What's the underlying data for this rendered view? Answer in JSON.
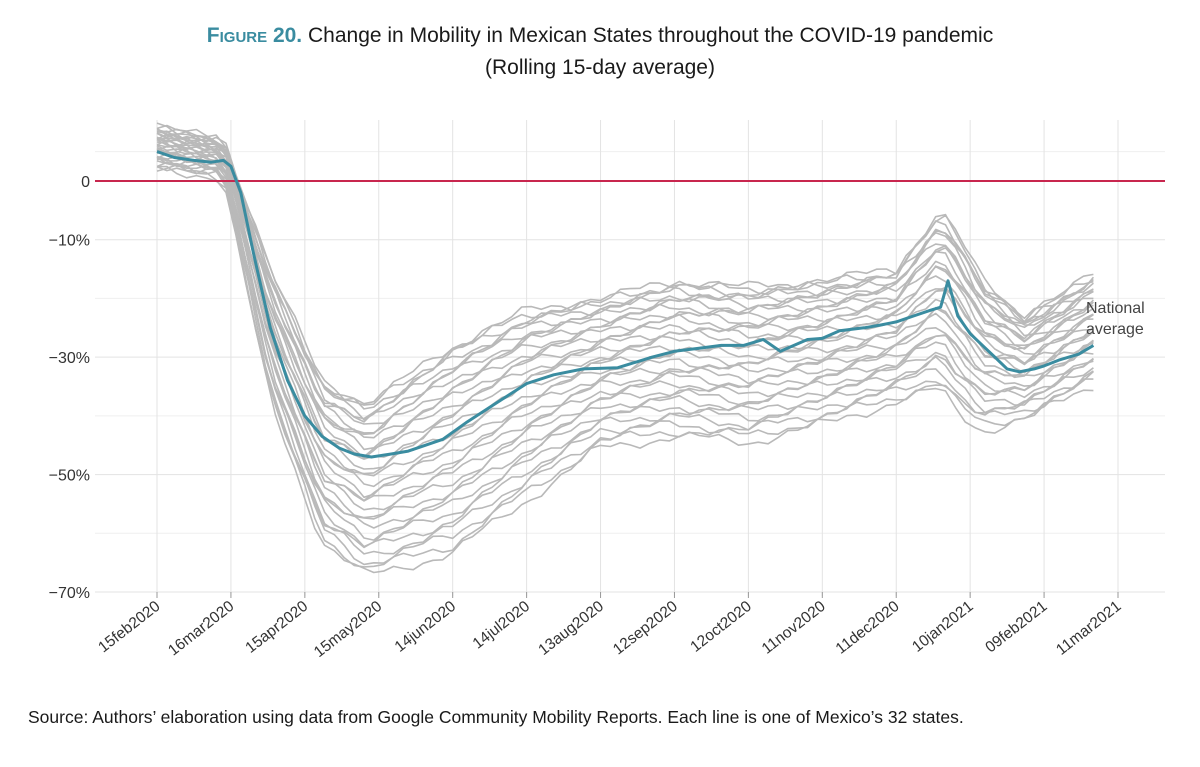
{
  "figure": {
    "label": "Figure 20.",
    "title": "Change in Mobility in Mexican States throughout the COVID-19 pandemic",
    "subtitle": "(Rolling 15-day average)"
  },
  "source": "Source: Authors’ elaboration using data from Google Community Mobility Reports. Each line is one of Mexico’s 32 states.",
  "colors": {
    "state_lines": "#b9b9b9",
    "national_average": "#3a8ca0",
    "zero_line": "#c8264e",
    "grid": "#e3e3e3"
  },
  "chart_data": {
    "type": "line",
    "title": "Change in Mobility in Mexican States throughout the COVID-19 pandemic",
    "subtitle": "(Rolling 15-day average)",
    "xlabel": "",
    "ylabel": "",
    "ylim": [
      -70,
      10
    ],
    "y_ticks": [
      0,
      -10,
      -30,
      -50,
      -70
    ],
    "y_tick_labels": [
      "0",
      "−10%",
      "−30%",
      "−50%",
      "−70%"
    ],
    "x_ticks": [
      "15feb2020",
      "16mar2020",
      "15apr2020",
      "15may2020",
      "14jun2020",
      "14jul2020",
      "13aug2020",
      "12sep2020",
      "12oct2020",
      "11nov2020",
      "11dec2020",
      "10jan2021",
      "09feb2021",
      "11mar2021"
    ],
    "xlim": [
      "2020-02-15",
      "2021-03-11"
    ],
    "grid": true,
    "reference_line": 0,
    "annotation": "National\naverage",
    "national_average": {
      "x": [
        "2020-02-15",
        "2020-02-22",
        "2020-03-01",
        "2020-03-08",
        "2020-03-13",
        "2020-03-16",
        "2020-03-20",
        "2020-03-25",
        "2020-04-01",
        "2020-04-08",
        "2020-04-15",
        "2020-04-22",
        "2020-04-29",
        "2020-05-05",
        "2020-05-12",
        "2020-05-20",
        "2020-05-27",
        "2020-06-03",
        "2020-06-10",
        "2020-06-20",
        "2020-07-01",
        "2020-07-14",
        "2020-07-25",
        "2020-08-06",
        "2020-08-20",
        "2020-09-03",
        "2020-09-12",
        "2020-09-22",
        "2020-10-01",
        "2020-10-10",
        "2020-10-18",
        "2020-10-25",
        "2020-11-05",
        "2020-11-11",
        "2020-11-18",
        "2020-11-28",
        "2020-12-05",
        "2020-12-11",
        "2020-12-18",
        "2020-12-25",
        "2020-12-29",
        "2021-01-01",
        "2021-01-05",
        "2021-01-10",
        "2021-01-15",
        "2021-01-20",
        "2021-01-25",
        "2021-01-30",
        "2021-02-05",
        "2021-02-09",
        "2021-02-15",
        "2021-02-23",
        "2021-03-01"
      ],
      "y": [
        5,
        4,
        3.5,
        3.2,
        3.5,
        2.5,
        -2,
        -12,
        -25,
        -34,
        -40,
        -43.5,
        -45.5,
        -46.5,
        -47,
        -46.5,
        -46,
        -45,
        -44,
        -41,
        -38,
        -34.5,
        -33,
        -32,
        -31.8,
        -30,
        -29,
        -28.5,
        -28,
        -28,
        -27,
        -29,
        -27,
        -26.8,
        -25.5,
        -25,
        -24.5,
        -24,
        -23,
        -22,
        -21.5,
        -17,
        -23,
        -26,
        -28,
        -30,
        -32,
        -32.5,
        -32,
        -31.5,
        -30.5,
        -29.5,
        -28
      ]
    },
    "states": {
      "count": 32,
      "high_x": [
        "2020-02-15",
        "2020-03-13",
        "2020-04-01",
        "2020-04-22",
        "2020-05-10",
        "2020-06-14",
        "2020-07-14",
        "2020-08-13",
        "2020-09-12",
        "2020-10-12",
        "2020-11-11",
        "2020-12-11",
        "2020-12-29",
        "2021-01-05",
        "2021-01-15",
        "2021-02-01",
        "2021-03-01"
      ],
      "high_y": [
        9,
        7,
        -15,
        -34,
        -38,
        -28,
        -22,
        -20,
        -17,
        -18,
        -17,
        -15,
        -5,
        -9,
        -17,
        -23,
        -16
      ],
      "low_x": [
        "2020-02-15",
        "2020-03-13",
        "2020-04-01",
        "2020-04-22",
        "2020-05-10",
        "2020-06-14",
        "2020-07-14",
        "2020-08-13",
        "2020-09-12",
        "2020-10-12",
        "2020-11-11",
        "2020-12-11",
        "2020-12-29",
        "2021-01-05",
        "2021-01-15",
        "2021-02-01",
        "2021-03-01"
      ],
      "low_y": [
        2,
        0.5,
        -38,
        -62,
        -68,
        -64,
        -55,
        -46,
        -44,
        -45,
        -42,
        -38,
        -36,
        -40,
        -43,
        -41,
        -35
      ]
    }
  }
}
